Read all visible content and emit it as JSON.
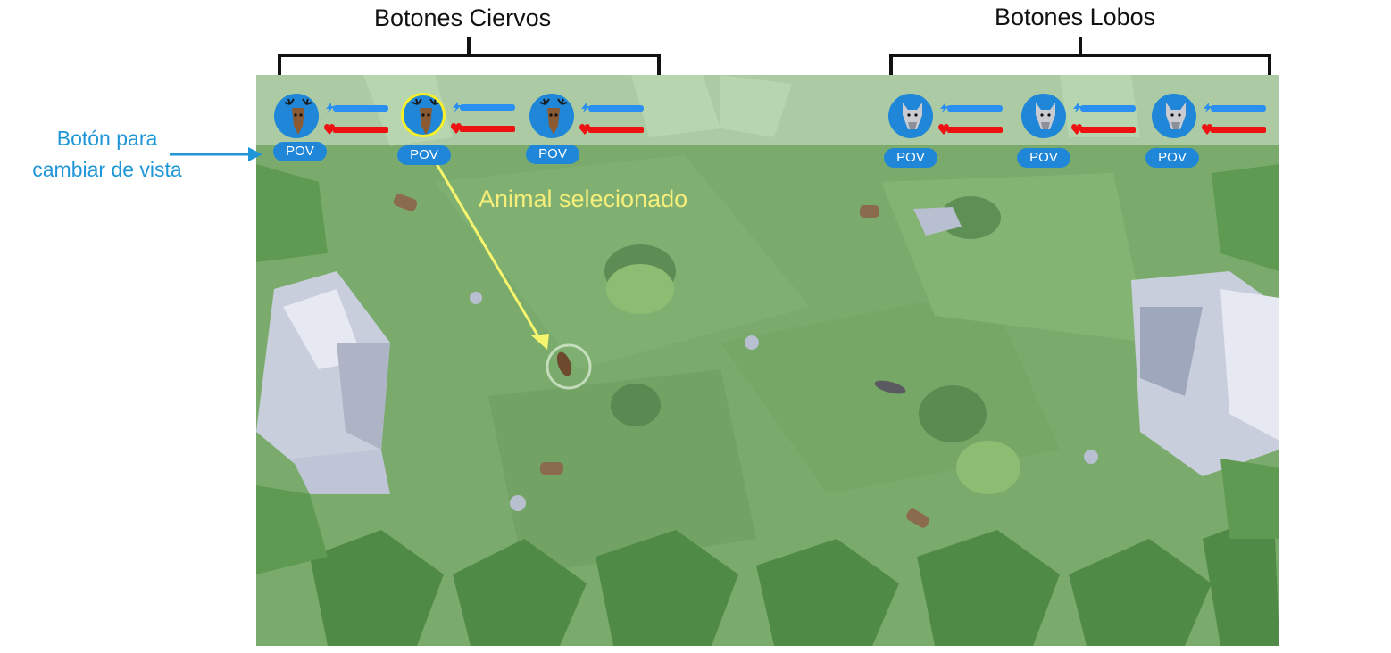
{
  "annotations": {
    "deer_group_title": "Botones Ciervos",
    "wolf_group_title": "Botones Lobos",
    "pov_explainer_line1": "Botón para",
    "pov_explainer_line2": "cambiar de vista",
    "selected_animal_label": "Animal selecionado",
    "colors": {
      "pov_arrow": "#1f96d8",
      "selected_arrow": "#f7f56e"
    }
  },
  "hud": {
    "deer": [
      {
        "icon": "deer-portrait-icon",
        "pov_label": "POV",
        "selected": false
      },
      {
        "icon": "deer-portrait-icon",
        "pov_label": "POV",
        "selected": true
      },
      {
        "icon": "deer-portrait-icon",
        "pov_label": "POV",
        "selected": false
      }
    ],
    "wolves": [
      {
        "icon": "wolf-portrait-icon",
        "pov_label": "POV",
        "selected": false
      },
      {
        "icon": "wolf-portrait-icon",
        "pov_label": "POV",
        "selected": false
      },
      {
        "icon": "wolf-portrait-icon",
        "pov_label": "POV",
        "selected": false
      }
    ],
    "bar_icons": {
      "energy": "lightning-icon",
      "health": "heart-icon"
    },
    "colors": {
      "energy": "#2a8ff0",
      "health": "#ee1111",
      "portrait_bg": "#1f86d8",
      "selection_ring": "#f7ef2a"
    }
  }
}
